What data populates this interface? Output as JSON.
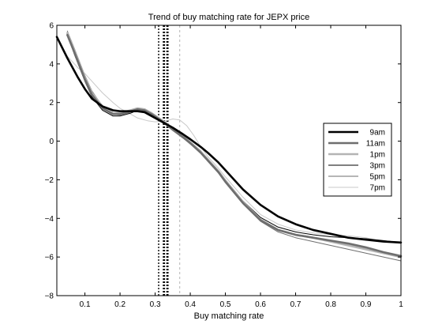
{
  "chart_data": {
    "type": "line",
    "title": "Trend of buy matching rate for JEPX price",
    "xlabel": "Buy matching rate",
    "ylabel": "",
    "xlim": [
      0.02,
      1.0
    ],
    "ylim": [
      -8,
      6
    ],
    "xticks": [
      0.1,
      0.2,
      0.3,
      0.4,
      0.5,
      0.6,
      0.7,
      0.8,
      0.9,
      1
    ],
    "xtick_labels": [
      "0.1",
      "0.2",
      "0.3",
      "0.4",
      "0.5",
      "0.6",
      "0.7",
      "0.8",
      "0.9",
      "1"
    ],
    "yticks": [
      -8,
      -6,
      -4,
      -2,
      0,
      2,
      4,
      6
    ],
    "ytick_labels": [
      "−8",
      "−6",
      "−4",
      "−2",
      "0",
      "2",
      "4",
      "6"
    ],
    "grid": false,
    "legend_position": "right",
    "series": [
      {
        "name": "9am",
        "color": "#000000",
        "style": "thick",
        "x": [
          0.02,
          0.05,
          0.08,
          0.1,
          0.12,
          0.15,
          0.18,
          0.2,
          0.23,
          0.25,
          0.27,
          0.29,
          0.31,
          0.33,
          0.35,
          0.38,
          0.4,
          0.43,
          0.45,
          0.48,
          0.5,
          0.55,
          0.6,
          0.65,
          0.7,
          0.75,
          0.8,
          0.85,
          0.9,
          0.95,
          1.0
        ],
        "y": [
          5.4,
          4.3,
          3.3,
          2.7,
          2.2,
          1.8,
          1.6,
          1.55,
          1.55,
          1.55,
          1.5,
          1.3,
          1.1,
          0.9,
          0.7,
          0.35,
          0.1,
          -0.3,
          -0.6,
          -1.1,
          -1.5,
          -2.5,
          -3.3,
          -3.9,
          -4.3,
          -4.6,
          -4.8,
          -5.0,
          -5.1,
          -5.2,
          -5.25
        ]
      },
      {
        "name": "11am",
        "color": "#6e6e6e",
        "style": "thick",
        "x": [
          0.05,
          0.07,
          0.1,
          0.12,
          0.15,
          0.18,
          0.2,
          0.23,
          0.25,
          0.27,
          0.29,
          0.31,
          0.33,
          0.35,
          0.38,
          0.4,
          0.43,
          0.45,
          0.48,
          0.5,
          0.55,
          0.6,
          0.65,
          0.7,
          0.75,
          0.8,
          0.85,
          0.9,
          0.95,
          1.0
        ],
        "y": [
          5.5,
          4.6,
          3.2,
          2.4,
          1.7,
          1.4,
          1.4,
          1.55,
          1.65,
          1.6,
          1.4,
          1.15,
          0.9,
          0.6,
          0.2,
          -0.1,
          -0.6,
          -1.0,
          -1.6,
          -2.1,
          -3.2,
          -4.1,
          -4.6,
          -4.85,
          -5.0,
          -5.15,
          -5.3,
          -5.5,
          -5.75,
          -5.95
        ]
      },
      {
        "name": "1pm",
        "color": "#b4b4b4",
        "style": "thick",
        "x": [
          0.05,
          0.07,
          0.1,
          0.12,
          0.15,
          0.18,
          0.2,
          0.23,
          0.25,
          0.27,
          0.29,
          0.31,
          0.33,
          0.35,
          0.38,
          0.4,
          0.43,
          0.45,
          0.48,
          0.5,
          0.55,
          0.6,
          0.65,
          0.7,
          0.75,
          0.8,
          0.85,
          0.9,
          0.95,
          1.0
        ],
        "y": [
          5.6,
          4.7,
          3.3,
          2.5,
          1.8,
          1.45,
          1.45,
          1.6,
          1.7,
          1.65,
          1.45,
          1.2,
          0.95,
          0.65,
          0.25,
          -0.05,
          -0.55,
          -0.95,
          -1.55,
          -2.05,
          -3.15,
          -4.05,
          -4.6,
          -4.85,
          -5.0,
          -5.2,
          -5.4,
          -5.6,
          -5.8,
          -6.0
        ]
      },
      {
        "name": "3pm",
        "color": "#000000",
        "style": "thin",
        "x": [
          0.05,
          0.07,
          0.1,
          0.12,
          0.15,
          0.18,
          0.2,
          0.23,
          0.25,
          0.27,
          0.29,
          0.31,
          0.33,
          0.35,
          0.38,
          0.4,
          0.43,
          0.45,
          0.48,
          0.5,
          0.55,
          0.6,
          0.65,
          0.7,
          0.75,
          0.8,
          0.85,
          0.9,
          0.95,
          1.0
        ],
        "y": [
          5.5,
          4.5,
          3.1,
          2.3,
          1.6,
          1.3,
          1.3,
          1.45,
          1.6,
          1.55,
          1.4,
          1.2,
          0.95,
          0.65,
          0.25,
          -0.05,
          -0.5,
          -0.95,
          -1.55,
          -2.0,
          -3.1,
          -3.95,
          -4.45,
          -4.7,
          -4.85,
          -4.95,
          -5.0,
          -5.05,
          -5.15,
          -5.25
        ]
      },
      {
        "name": "5pm",
        "color": "#6e6e6e",
        "style": "thin",
        "x": [
          0.05,
          0.07,
          0.1,
          0.12,
          0.15,
          0.18,
          0.2,
          0.23,
          0.25,
          0.27,
          0.29,
          0.31,
          0.33,
          0.35,
          0.38,
          0.4,
          0.43,
          0.45,
          0.48,
          0.5,
          0.55,
          0.6,
          0.65,
          0.7,
          0.75,
          0.8,
          0.85,
          0.9,
          0.95,
          1.0
        ],
        "y": [
          5.7,
          4.8,
          3.4,
          2.6,
          1.8,
          1.4,
          1.35,
          1.5,
          1.6,
          1.55,
          1.35,
          1.1,
          0.85,
          0.55,
          0.15,
          -0.15,
          -0.6,
          -1.05,
          -1.65,
          -2.15,
          -3.25,
          -4.15,
          -4.7,
          -5.0,
          -5.2,
          -5.4,
          -5.6,
          -5.8,
          -6.0,
          -6.2
        ]
      },
      {
        "name": "7pm",
        "color": "#c8c8c8",
        "style": "thin",
        "x": [
          0.03,
          0.05,
          0.08,
          0.1,
          0.12,
          0.15,
          0.18,
          0.2,
          0.23,
          0.25,
          0.28,
          0.3,
          0.33,
          0.35,
          0.37,
          0.39,
          0.41,
          0.43,
          0.45,
          0.48,
          0.5,
          0.55,
          0.6,
          0.65,
          0.7,
          0.75,
          0.8,
          0.85,
          0.9,
          0.95,
          1.0
        ],
        "y": [
          5.1,
          4.4,
          3.8,
          3.5,
          3.1,
          2.5,
          2.0,
          1.7,
          1.4,
          1.2,
          1.05,
          1.0,
          1.05,
          1.15,
          1.1,
          0.8,
          0.3,
          -0.3,
          -0.8,
          -1.4,
          -1.85,
          -2.9,
          -3.8,
          -4.3,
          -4.6,
          -4.75,
          -4.85,
          -4.9,
          -5.0,
          -5.2,
          -5.3
        ]
      }
    ],
    "vertical_lines": [
      {
        "x": 0.31,
        "color": "#000000",
        "style": "dotted-thin"
      },
      {
        "x": 0.325,
        "color": "#000000",
        "style": "dotted-thick"
      },
      {
        "x": 0.335,
        "color": "#000000",
        "style": "dotted-thick"
      },
      {
        "x": 0.37,
        "color": "#b4b4b4",
        "style": "dashed-light"
      }
    ]
  }
}
